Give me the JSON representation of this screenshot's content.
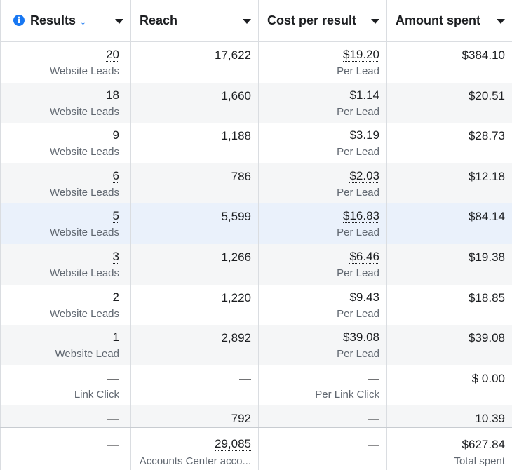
{
  "header": {
    "results": "Results",
    "reach": "Reach",
    "cost_per_result": "Cost per result",
    "amount_spent": "Amount spent"
  },
  "rows": [
    {
      "results": "20",
      "results_label": "Website Leads",
      "reach": "17,622",
      "cost": "$19.20",
      "cost_label": "Per Lead",
      "spent": "$384.10"
    },
    {
      "results": "18",
      "results_label": "Website Leads",
      "reach": "1,660",
      "cost": "$1.14",
      "cost_label": "Per Lead",
      "spent": "$20.51"
    },
    {
      "results": "9",
      "results_label": "Website Leads",
      "reach": "1,188",
      "cost": "$3.19",
      "cost_label": "Per Lead",
      "spent": "$28.73"
    },
    {
      "results": "6",
      "results_label": "Website Leads",
      "reach": "786",
      "cost": "$2.03",
      "cost_label": "Per Lead",
      "spent": "$12.18"
    },
    {
      "results": "5",
      "results_label": "Website Leads",
      "reach": "5,599",
      "cost": "$16.83",
      "cost_label": "Per Lead",
      "spent": "$84.14"
    },
    {
      "results": "3",
      "results_label": "Website Leads",
      "reach": "1,266",
      "cost": "$6.46",
      "cost_label": "Per Lead",
      "spent": "$19.38"
    },
    {
      "results": "2",
      "results_label": "Website Leads",
      "reach": "1,220",
      "cost": "$9.43",
      "cost_label": "Per Lead",
      "spent": "$18.85"
    },
    {
      "results": "1",
      "results_label": "Website Lead",
      "reach": "2,892",
      "cost": "$39.08",
      "cost_label": "Per Lead",
      "spent": "$39.08"
    },
    {
      "results": "—",
      "results_label": "Link Click",
      "reach": "—",
      "cost": "—",
      "cost_label": "Per Link Click",
      "spent": "$ 0.00"
    }
  ],
  "partial_row": {
    "results": "—",
    "reach": "792",
    "cost": "—",
    "spent": "10.39"
  },
  "summary": {
    "results": "—",
    "reach": "29,085",
    "reach_label": "Accounts Center acco...",
    "cost": "—",
    "spent": "$627.84",
    "spent_label": "Total spent"
  },
  "colors": {
    "accent": "#1877f2",
    "row_alt": "#f5f6f7",
    "row_highlight": "#eaf1fb",
    "border": "#dadde1",
    "muted_text": "#606770"
  }
}
